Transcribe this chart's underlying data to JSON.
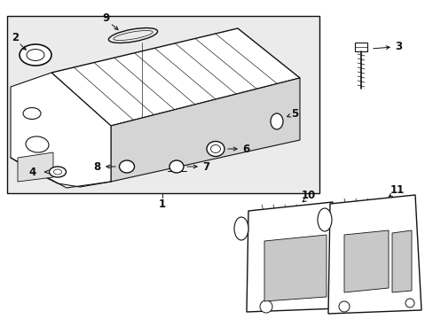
{
  "bg_color": "#ebebeb",
  "line_color": "#111111",
  "text_color": "#111111",
  "white": "#ffffff",
  "gray": "#d0d0d0"
}
